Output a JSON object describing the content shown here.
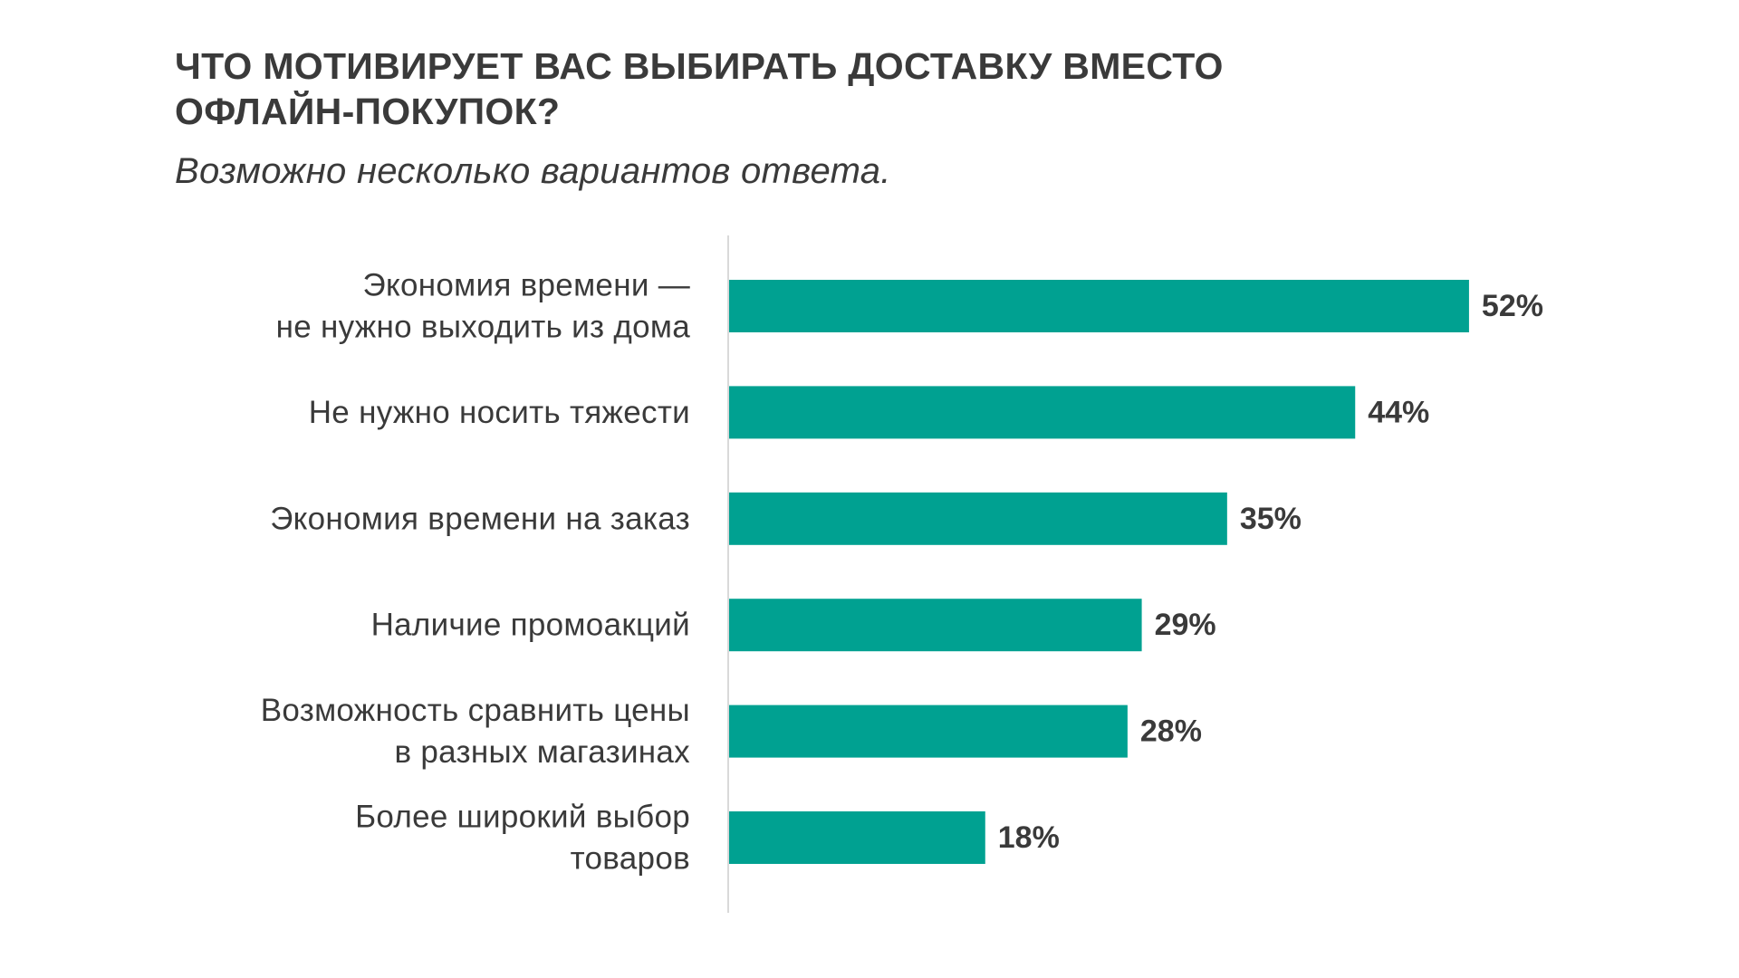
{
  "header": {
    "title_lines": [
      "ЧТО МОТИВИРУЕТ ВАС ВЫБИРАТЬ ДОСТАВКУ ВМЕСТО",
      "ОФЛАЙН-ПОКУПОК?"
    ],
    "subtitle": "Возможно несколько вариантов ответа."
  },
  "colors": {
    "bar": "#00a191",
    "axis": "#d9d9d9",
    "text": "#3a3a3a"
  },
  "chart_data": {
    "type": "bar",
    "orientation": "horizontal",
    "categories": [
      [
        "Экономия времени —",
        "не нужно выходить из дома"
      ],
      [
        "Не нужно носить тяжести"
      ],
      [
        "Экономия времени на заказ"
      ],
      [
        "Наличие промоакций"
      ],
      [
        "Возможность сравнить цены",
        "в разных магазинах"
      ],
      [
        "Более широкий выбор",
        "товаров"
      ]
    ],
    "values": [
      52,
      44,
      35,
      29,
      28,
      18
    ],
    "value_labels": [
      "52%",
      "44%",
      "35%",
      "29%",
      "28%",
      "18%"
    ],
    "value_unit": "%",
    "xlim": [
      0,
      100
    ],
    "grid": false,
    "legend": "none"
  }
}
